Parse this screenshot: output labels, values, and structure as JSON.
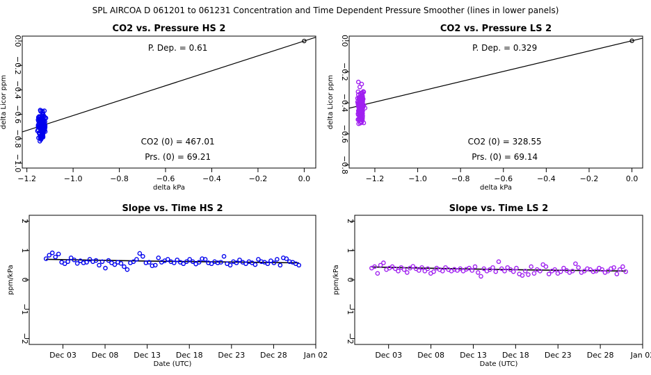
{
  "suptitle": "SPL   AIRCOA D   061201 to 061231   Concentration and Time Dependent Pressure Smoother (lines in lower panels)",
  "chart_data": [
    {
      "type": "scatter",
      "title": "CO2 vs. Pressure HS 2",
      "xlabel": "delta kPa",
      "ylabel": "delta Licor ppm",
      "xlim": [
        -1.22,
        0.05
      ],
      "ylim": [
        -1.04,
        0.04
      ],
      "xticks": [
        -1.2,
        -1.0,
        -0.8,
        -0.6,
        -0.4,
        -0.2,
        0.0
      ],
      "xtick_labels": [
        "−1.2",
        "−1.0",
        "−0.8",
        "−0.6",
        "−0.4",
        "−0.2",
        "0.0"
      ],
      "yticks": [
        0.0,
        -0.2,
        -0.4,
        -0.6,
        -0.8,
        -1.0
      ],
      "ytick_labels": [
        "0.0",
        "−0.2",
        "−0.4",
        "−0.6",
        "−0.8",
        "−1.0"
      ],
      "marker_color": "#0000ee",
      "fit_line": {
        "slope": 0.61,
        "intercept": 0.0
      },
      "origin_point": [
        0.0,
        0.0
      ],
      "annotations": [
        "P. Dep. =  0.61",
        "CO2 (0) =  467.01",
        "Prs. (0) =  69.21"
      ],
      "cluster": {
        "x_center": -1.135,
        "x_spread": 0.022,
        "y_center": -0.69,
        "y_spread": 0.12,
        "count": 150
      }
    },
    {
      "type": "scatter",
      "title": "CO2 vs. Pressure LS 2",
      "xlabel": "delta kPa",
      "ylabel": "delta Licor ppm",
      "xlim": [
        -1.32,
        0.05
      ],
      "ylim": [
        -0.82,
        0.03
      ],
      "xticks": [
        -1.2,
        -1.0,
        -0.8,
        -0.6,
        -0.4,
        -0.2,
        0.0
      ],
      "xtick_labels": [
        "−1.2",
        "−1.0",
        "−0.8",
        "−0.6",
        "−0.4",
        "−0.2",
        "0.0"
      ],
      "yticks": [
        0.0,
        -0.2,
        -0.4,
        -0.6,
        -0.8
      ],
      "ytick_labels": [
        "0.0",
        "−0.2",
        "−0.4",
        "−0.6",
        "−0.8"
      ],
      "marker_color": "#a020f0",
      "fit_line": {
        "slope": 0.329,
        "intercept": 0.0
      },
      "origin_point": [
        0.0,
        0.0
      ],
      "annotations": [
        "P. Dep. =  0.329",
        "CO2 (0) =  328.55",
        "Prs. (0) =  69.14"
      ],
      "cluster": {
        "x_center": -1.265,
        "x_spread": 0.022,
        "y_center": -0.42,
        "y_spread": 0.13,
        "count": 150
      }
    },
    {
      "type": "line",
      "title": "Slope vs. Time HS 2",
      "xlabel": "Date (UTC)",
      "ylabel": "ppm/kPa",
      "xlim": [
        "2006-11-29",
        "2007-01-02"
      ],
      "ylim": [
        -2.2,
        2.2
      ],
      "xticks": [
        "2006-12-03",
        "2006-12-08",
        "2006-12-13",
        "2006-12-18",
        "2006-12-23",
        "2006-12-28",
        "2007-01-02"
      ],
      "xtick_labels": [
        "Dec 03",
        "Dec 08",
        "Dec 13",
        "Dec 18",
        "Dec 23",
        "Dec 28",
        "Jan 02"
      ],
      "yticks": [
        -2,
        -1,
        0,
        1,
        2
      ],
      "ytick_labels": [
        "−2",
        "−1",
        "0",
        "1",
        "2"
      ],
      "marker_color": "#0000ee",
      "x_start": "2006-12-01",
      "x_end": "2006-12-31",
      "smoother": [
        0.7,
        0.67,
        0.64,
        0.62,
        0.6,
        0.58
      ],
      "series": [
        {
          "values": [
            0.72,
            0.84,
            0.92,
            0.78,
            0.88,
            0.6,
            0.55,
            0.62,
            0.75,
            0.68,
            0.56,
            0.65,
            0.58,
            0.6,
            0.7,
            0.62,
            0.66,
            0.5,
            0.62,
            0.4,
            0.66,
            0.58,
            0.52,
            0.6,
            0.56,
            0.45,
            0.35,
            0.58,
            0.62,
            0.7,
            0.9,
            0.8,
            0.58,
            0.6,
            0.48,
            0.5,
            0.75,
            0.6,
            0.65,
            0.7,
            0.62,
            0.58,
            0.68,
            0.6,
            0.55,
            0.62,
            0.7,
            0.62,
            0.54,
            0.6,
            0.72,
            0.7,
            0.58,
            0.55,
            0.62,
            0.58,
            0.6,
            0.8,
            0.55,
            0.5,
            0.62,
            0.58,
            0.68,
            0.6,
            0.55,
            0.62,
            0.58,
            0.52,
            0.7,
            0.62,
            0.6,
            0.55,
            0.65,
            0.58,
            0.7,
            0.5,
            0.75,
            0.72,
            0.62,
            0.6,
            0.55,
            0.5
          ]
        }
      ]
    },
    {
      "type": "line",
      "title": "Slope vs. Time LS 2",
      "xlabel": "Date (UTC)",
      "ylabel": "ppm/kPa",
      "xlim": [
        "2006-11-29",
        "2007-01-02"
      ],
      "ylim": [
        -2.2,
        2.2
      ],
      "xticks": [
        "2006-12-03",
        "2006-12-08",
        "2006-12-13",
        "2006-12-18",
        "2006-12-23",
        "2006-12-28",
        "2007-01-02"
      ],
      "xtick_labels": [
        "Dec 03",
        "Dec 08",
        "Dec 13",
        "Dec 18",
        "Dec 23",
        "Dec 28",
        "Jan 02"
      ],
      "yticks": [
        -2,
        -1,
        0,
        1,
        2
      ],
      "ytick_labels": [
        "−2",
        "−1",
        "0",
        "1",
        "2"
      ],
      "marker_color": "#a020f0",
      "x_start": "2006-12-01",
      "x_end": "2006-12-31",
      "smoother": [
        0.44,
        0.4,
        0.37,
        0.34,
        0.32,
        0.3
      ],
      "series": [
        {
          "values": [
            0.4,
            0.45,
            0.22,
            0.5,
            0.58,
            0.35,
            0.4,
            0.45,
            0.38,
            0.3,
            0.42,
            0.35,
            0.25,
            0.4,
            0.46,
            0.38,
            0.32,
            0.42,
            0.3,
            0.38,
            0.22,
            0.28,
            0.4,
            0.35,
            0.3,
            0.42,
            0.35,
            0.3,
            0.36,
            0.32,
            0.38,
            0.3,
            0.36,
            0.4,
            0.32,
            0.45,
            0.25,
            0.12,
            0.38,
            0.3,
            0.35,
            0.42,
            0.28,
            0.62,
            0.38,
            0.3,
            0.42,
            0.35,
            0.28,
            0.4,
            0.2,
            0.15,
            0.3,
            0.18,
            0.45,
            0.22,
            0.35,
            0.3,
            0.52,
            0.45,
            0.2,
            0.3,
            0.35,
            0.22,
            0.28,
            0.4,
            0.32,
            0.25,
            0.3,
            0.55,
            0.42,
            0.25,
            0.3,
            0.38,
            0.35,
            0.28,
            0.3,
            0.4,
            0.35,
            0.25,
            0.3,
            0.38,
            0.42,
            0.2,
            0.35,
            0.45,
            0.28
          ]
        }
      ]
    }
  ]
}
